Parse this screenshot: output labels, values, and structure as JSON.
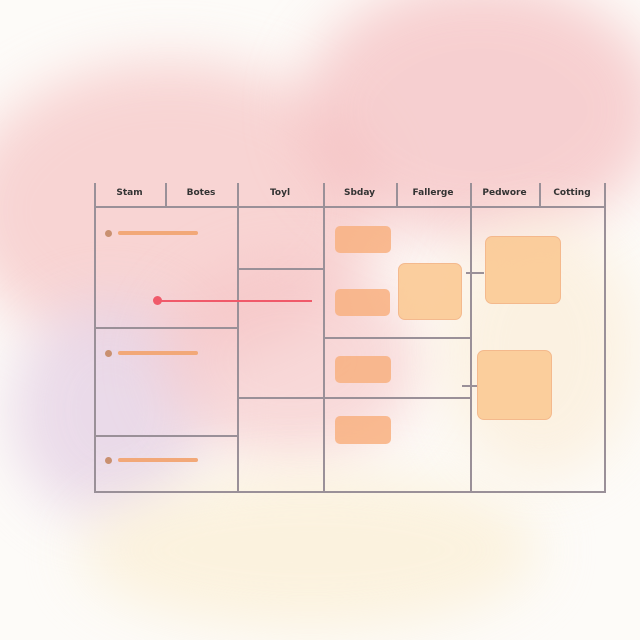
{
  "columns": [
    "Stam",
    "Botes",
    "Toyl",
    "Sbday",
    "Fallerge",
    "Pedwore",
    "Cotting"
  ],
  "colors": {
    "accent_line": "#f05a6a",
    "card": "#f8b080",
    "grid": "#9a9098"
  }
}
